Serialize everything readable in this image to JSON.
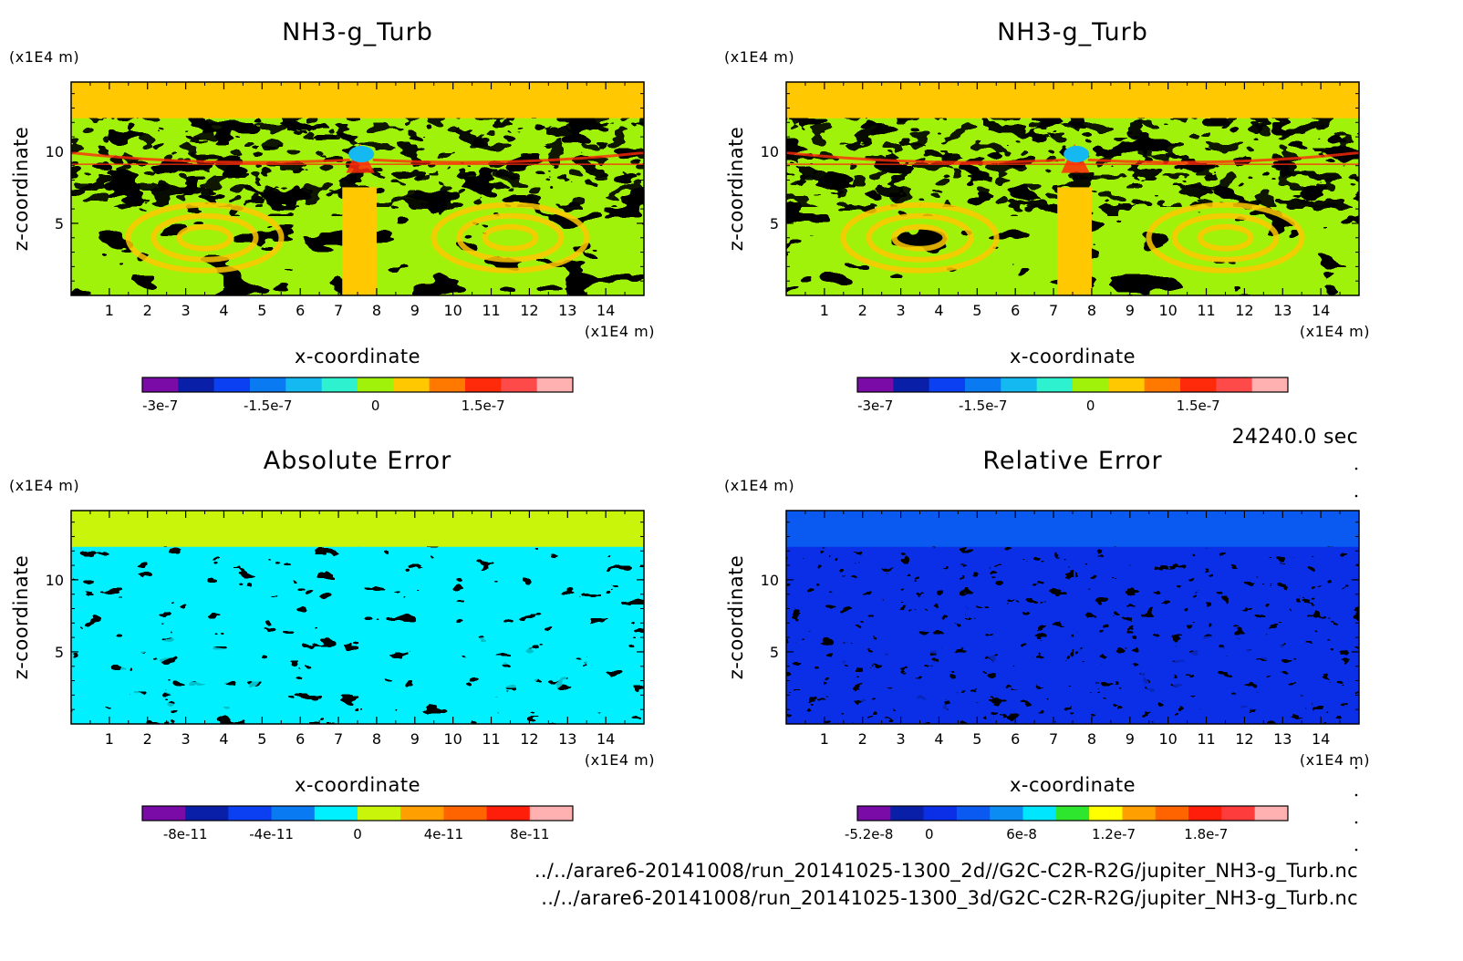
{
  "chart_data": [
    {
      "type": "heatmap",
      "title": "NH3-g_Turb",
      "xlabel": "x-coordinate",
      "ylabel": "z-coordinate",
      "x_unit": "(x1E4 m)",
      "y_unit": "(x1E4 m)",
      "xlim": [
        0,
        15
      ],
      "ylim": [
        0,
        14.8
      ],
      "x_ticks": [
        "1",
        "2",
        "3",
        "4",
        "5",
        "6",
        "7",
        "8",
        "9",
        "10",
        "11",
        "12",
        "13",
        "14"
      ],
      "y_ticks": [
        "5",
        "10"
      ],
      "colorbar": {
        "colors": [
          "#7a0ba6",
          "#0a1fa8",
          "#0a3ff2",
          "#0a7af2",
          "#14b9f2",
          "#2ef2cf",
          "#a0f20a",
          "#ffc800",
          "#ff7800",
          "#ff2a0a",
          "#ff4a4a",
          "#ffb0b0"
        ],
        "labels": [
          "-3e-7",
          "-1.5e-7",
          "0",
          "1.5e-7"
        ],
        "label_positions": [
          0.5,
          3.5,
          6.5,
          9.5
        ]
      },
      "field_colors": {
        "background": "#ffc800",
        "primary": "#a0f20a",
        "secondary": "#ff7800",
        "accent": "#14b9f2",
        "high": "#ff2a0a"
      }
    },
    {
      "type": "heatmap",
      "title": "NH3-g_Turb",
      "xlabel": "x-coordinate",
      "ylabel": "z-coordinate",
      "x_unit": "(x1E4 m)",
      "y_unit": "(x1E4 m)",
      "xlim": [
        0,
        15
      ],
      "ylim": [
        0,
        14.8
      ],
      "x_ticks": [
        "1",
        "2",
        "3",
        "4",
        "5",
        "6",
        "7",
        "8",
        "9",
        "10",
        "11",
        "12",
        "13",
        "14"
      ],
      "y_ticks": [
        "5",
        "10"
      ],
      "colorbar": {
        "colors": [
          "#7a0ba6",
          "#0a1fa8",
          "#0a3ff2",
          "#0a7af2",
          "#14b9f2",
          "#2ef2cf",
          "#a0f20a",
          "#ffc800",
          "#ff7800",
          "#ff2a0a",
          "#ff4a4a",
          "#ffb0b0"
        ],
        "labels": [
          "-3e-7",
          "-1.5e-7",
          "0",
          "1.5e-7"
        ],
        "label_positions": [
          0.5,
          3.5,
          6.5,
          9.5
        ]
      },
      "field_colors": {
        "background": "#ffc800",
        "primary": "#a0f20a",
        "secondary": "#ff7800",
        "accent": "#14b9f2",
        "high": "#ff2a0a"
      }
    },
    {
      "type": "heatmap",
      "title": "Absolute Error",
      "xlabel": "x-coordinate",
      "ylabel": "z-coordinate",
      "x_unit": "(x1E4 m)",
      "y_unit": "(x1E4 m)",
      "xlim": [
        0,
        15
      ],
      "ylim": [
        0,
        14.8
      ],
      "x_ticks": [
        "1",
        "2",
        "3",
        "4",
        "5",
        "6",
        "7",
        "8",
        "9",
        "10",
        "11",
        "12",
        "13",
        "14"
      ],
      "y_ticks": [
        "5",
        "10"
      ],
      "colorbar": {
        "colors": [
          "#7a0ba6",
          "#0a1fa8",
          "#0a3ff2",
          "#0a7af2",
          "#00f0ff",
          "#c8f50a",
          "#ffa000",
          "#ff6400",
          "#ff1e0a",
          "#ffb0b0"
        ],
        "labels": [
          "-8e-11",
          "-4e-11",
          "0",
          "4e-11",
          "8e-11"
        ],
        "label_positions": [
          1,
          3,
          5,
          7,
          9
        ]
      },
      "field_colors": {
        "background": "#c8f50a",
        "primary": "#00f0ff",
        "secondary": "#c8f50a",
        "accent": "#00f0ff",
        "high": "#00f0ff"
      }
    },
    {
      "type": "heatmap",
      "title": "Relative Error",
      "xlabel": "x-coordinate",
      "ylabel": "z-coordinate",
      "x_unit": "(x1E4 m)",
      "y_unit": "(x1E4 m)",
      "xlim": [
        0,
        15
      ],
      "ylim": [
        0,
        14.8
      ],
      "x_ticks": [
        "1",
        "2",
        "3",
        "4",
        "5",
        "6",
        "7",
        "8",
        "9",
        "10",
        "11",
        "12",
        "13",
        "14"
      ],
      "y_ticks": [
        "5",
        "10"
      ],
      "colorbar": {
        "colors": [
          "#7a0ba6",
          "#0a1fa8",
          "#0a2fe6",
          "#0a5af2",
          "#0a8cf2",
          "#00e6ff",
          "#2ee62e",
          "#ffff00",
          "#ffa000",
          "#ff6400",
          "#ff1e0a",
          "#ff3c3c",
          "#ffb0b0"
        ],
        "labels": [
          "-5.2e-8",
          "0",
          "6e-8",
          "1.2e-7",
          "1.8e-7"
        ],
        "label_positions": [
          0.35,
          2.17,
          4.96,
          7.74,
          10.53
        ]
      },
      "field_colors": {
        "background": "#0a5af2",
        "primary": "#0a2fe6",
        "secondary": "#0a5af2",
        "accent": "#0a2fe6",
        "high": "#0a2fe6"
      }
    }
  ],
  "time_label": "24240.0 sec",
  "file_paths": [
    "../../arare6-20141008/run_20141025-1300_2d//G2C-C2R-R2G/jupiter_NH3-g_Turb.nc",
    "../../arare6-20141008/run_20141025-1300_3d/G2C-C2R-R2G/jupiter_NH3-g_Turb.nc"
  ]
}
